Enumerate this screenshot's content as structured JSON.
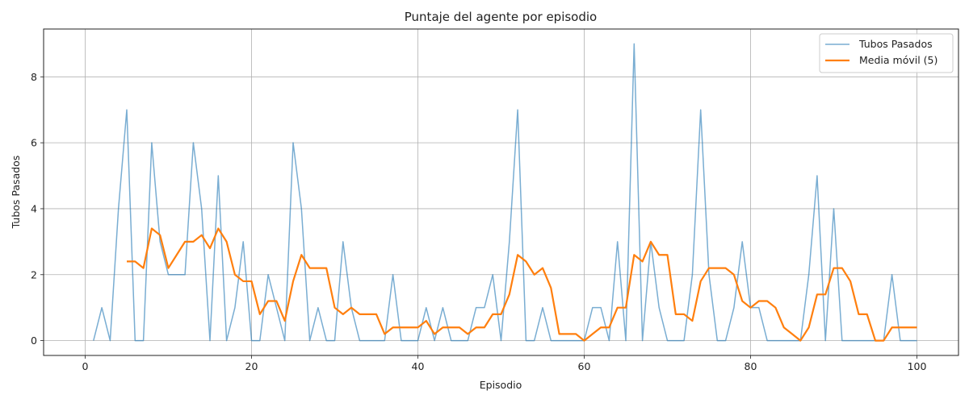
{
  "chart_data": {
    "type": "line",
    "title": "Puntaje del agente por episodio",
    "xlabel": "Episodio",
    "ylabel": "Tubos Pasados",
    "xlim": [
      -5,
      105
    ],
    "ylim": [
      -0.45,
      9.45
    ],
    "xticks": [
      0,
      20,
      40,
      60,
      80,
      100
    ],
    "yticks": [
      0,
      2,
      4,
      6,
      8
    ],
    "grid": true,
    "legend_position": "top-right",
    "colors": {
      "raw": "#1f77b4",
      "moving_average": "#ff7f0e"
    },
    "series": [
      {
        "name": "Tubos Pasados",
        "x_start": 1,
        "values": [
          0,
          1,
          0,
          4,
          7,
          0,
          0,
          6,
          3,
          2,
          2,
          2,
          6,
          4,
          0,
          5,
          0,
          1,
          3,
          0,
          0,
          2,
          1,
          0,
          6,
          4,
          0,
          1,
          0,
          0,
          3,
          1,
          0,
          0,
          0,
          0,
          2,
          0,
          0,
          0,
          1,
          0,
          1,
          0,
          0,
          0,
          1,
          1,
          2,
          0,
          3,
          7,
          0,
          0,
          1,
          0,
          0,
          0,
          0,
          0,
          1,
          1,
          0,
          3,
          0,
          9,
          0,
          3,
          1,
          0,
          0,
          0,
          2,
          7,
          2,
          0,
          0,
          1,
          3,
          1,
          1,
          0,
          0,
          0,
          0,
          0,
          2,
          5,
          0,
          4,
          0,
          0,
          0,
          0,
          0,
          0,
          2,
          0,
          0,
          0
        ]
      },
      {
        "name": "Media móvil (5)",
        "x_start": 5,
        "values": [
          2.4,
          2.4,
          2.2,
          3.4,
          3.2,
          2.2,
          2.6,
          3.0,
          3.0,
          3.2,
          2.8,
          3.4,
          3.0,
          2.0,
          1.8,
          1.8,
          0.8,
          1.2,
          1.2,
          0.6,
          1.8,
          2.6,
          2.2,
          2.2,
          2.2,
          1.0,
          0.8,
          1.0,
          0.8,
          0.8,
          0.8,
          0.2,
          0.4,
          0.4,
          0.4,
          0.4,
          0.6,
          0.2,
          0.4,
          0.4,
          0.4,
          0.2,
          0.4,
          0.4,
          0.8,
          0.8,
          1.4,
          2.6,
          2.4,
          2.0,
          2.2,
          1.6,
          0.2,
          0.2,
          0.2,
          0.0,
          0.2,
          0.4,
          0.4,
          1.0,
          1.0,
          2.6,
          2.4,
          3.0,
          2.6,
          2.6,
          0.8,
          0.8,
          0.6,
          1.8,
          2.2,
          2.2,
          2.2,
          2.0,
          1.2,
          1.0,
          1.2,
          1.2,
          1.0,
          0.4,
          0.2,
          0.0,
          0.4,
          1.4,
          1.4,
          2.2,
          2.2,
          1.8,
          0.8,
          0.8,
          0.0,
          0.0,
          0.4,
          0.4,
          0.4,
          0.4
        ]
      }
    ]
  }
}
